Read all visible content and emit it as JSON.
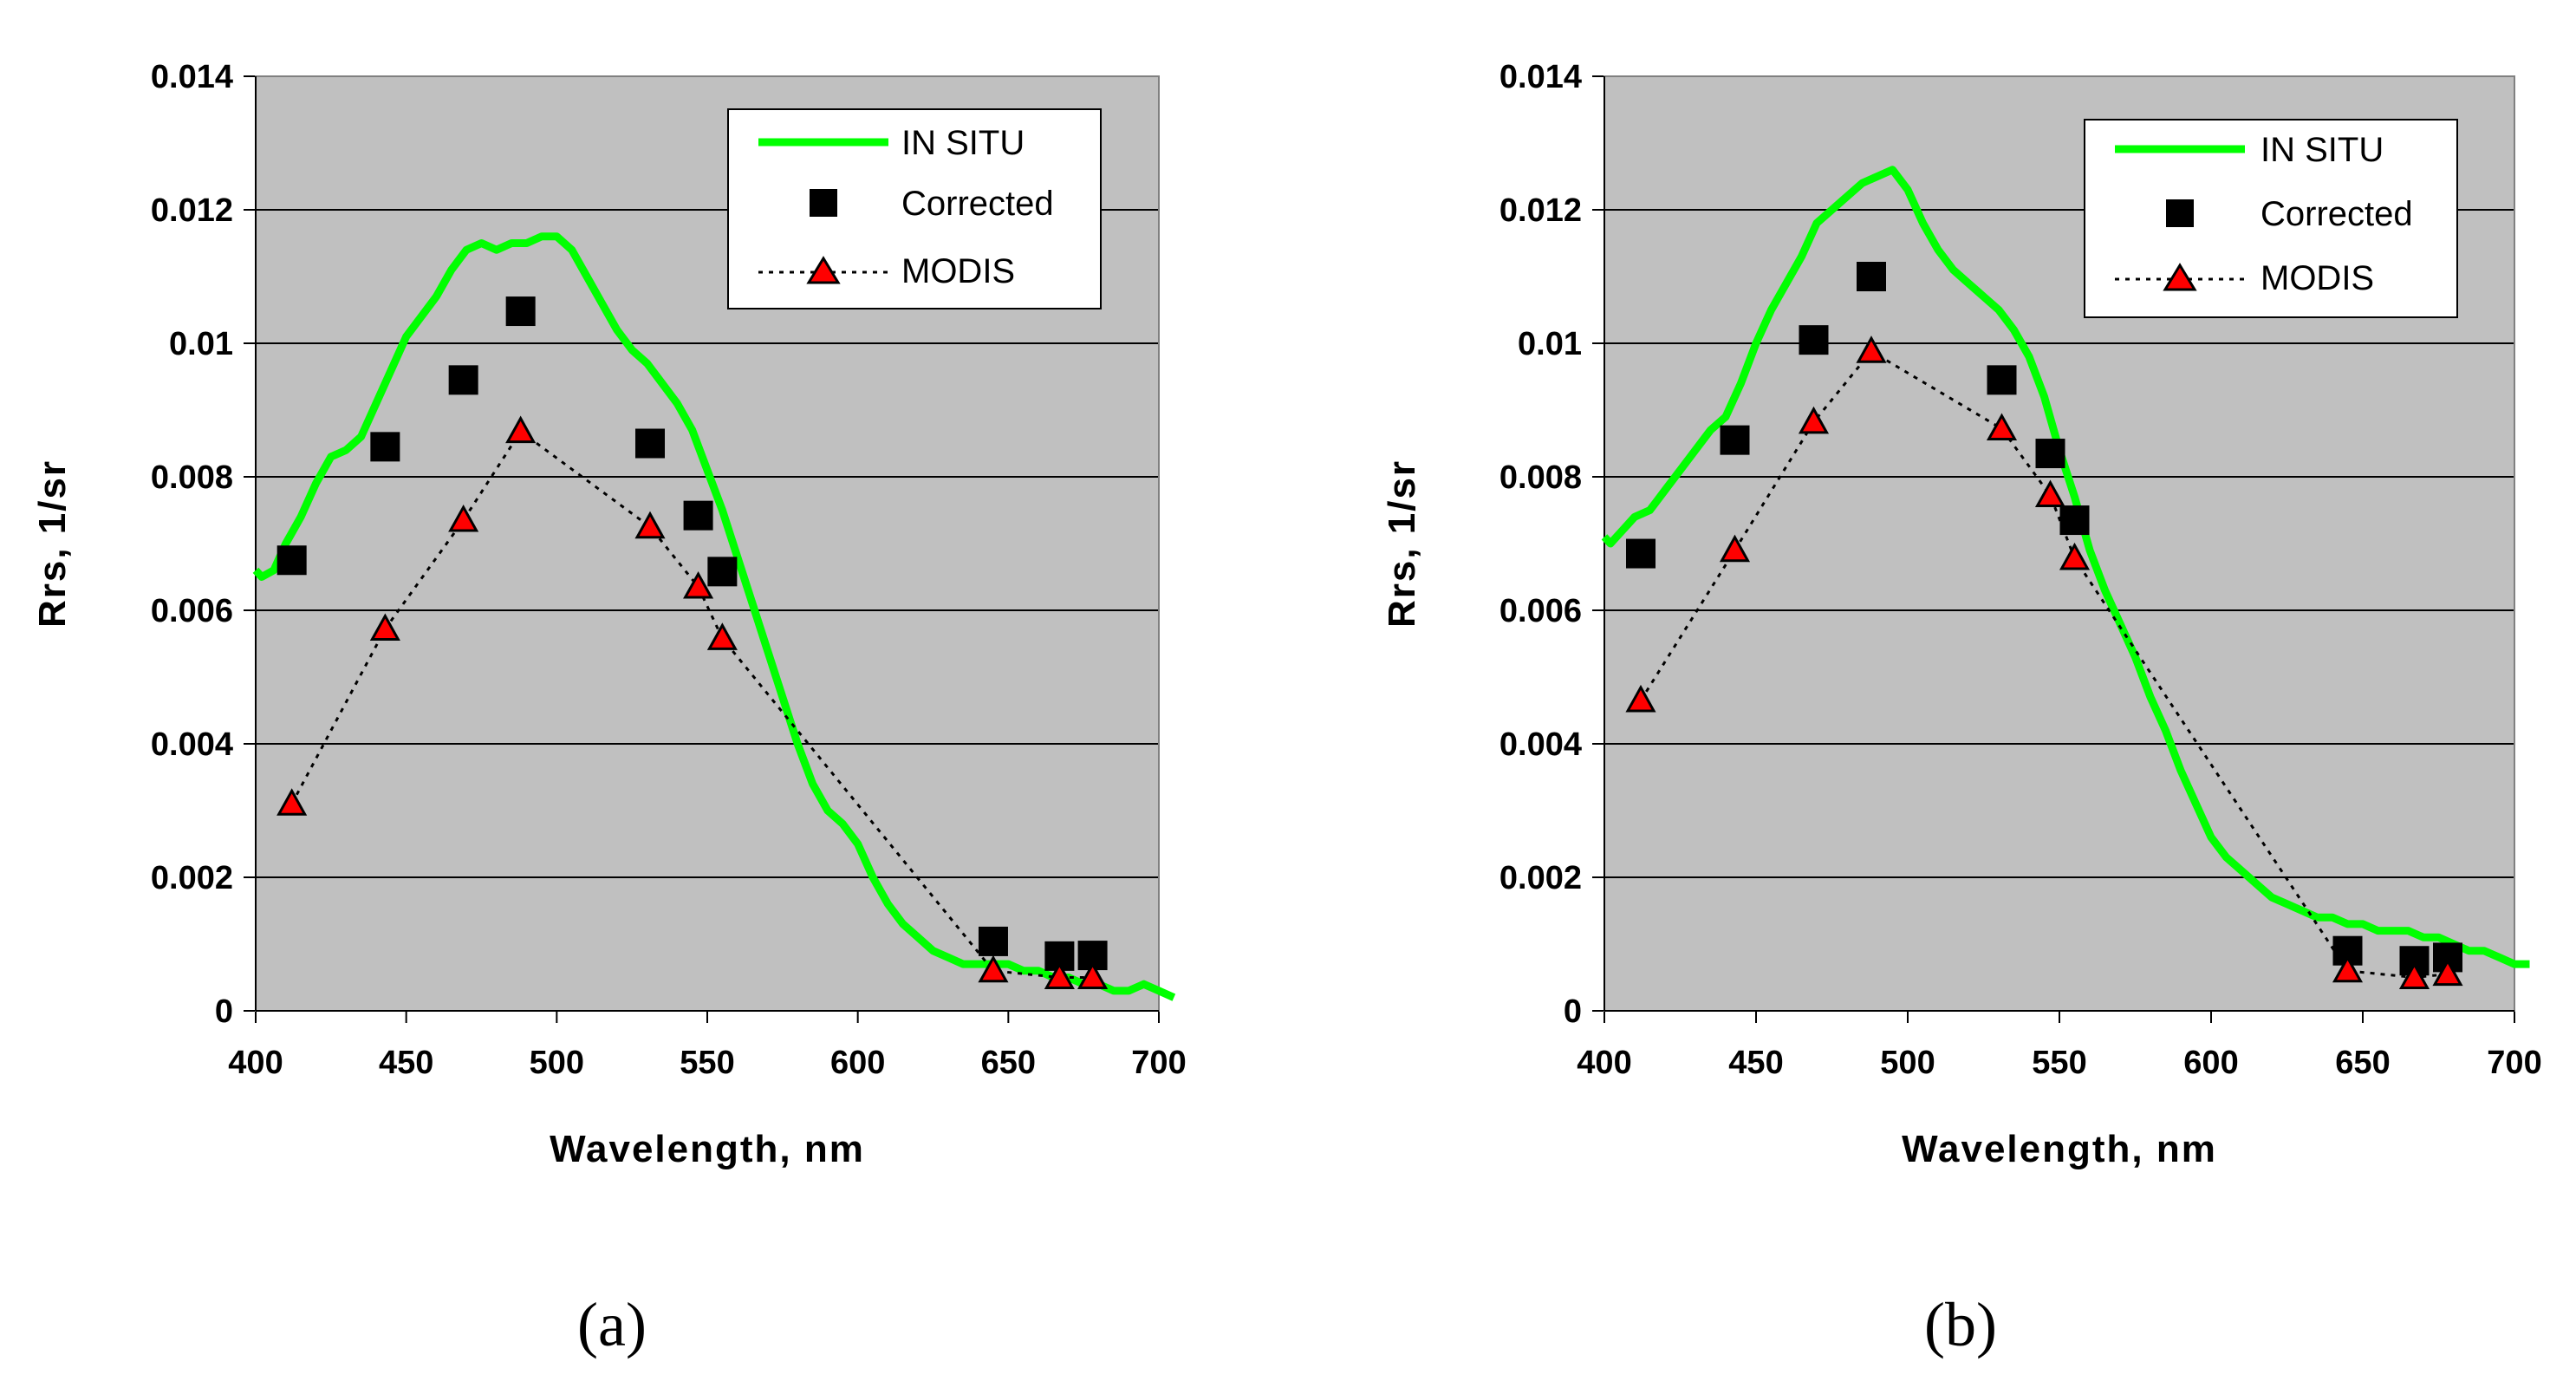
{
  "chart_data": [
    {
      "type": "line",
      "panel_label": "(a)",
      "xlabel": "Wavelength, nm",
      "ylabel": "Rrs, 1/sr",
      "xlim": [
        400,
        700
      ],
      "ylim": [
        0,
        0.014
      ],
      "xticks": [
        "400",
        "450",
        "500",
        "550",
        "600",
        "650",
        "700"
      ],
      "yticks": [
        "0",
        "0.002",
        "0.004",
        "0.006",
        "0.008",
        "0.01",
        "0.012",
        "0.014"
      ],
      "grid": "horizontal",
      "legend_position": "top-right",
      "legend": [
        "IN SITU",
        "Corrected",
        "MODIS"
      ],
      "series": [
        {
          "name": "IN SITU",
          "style": "green-line",
          "x": [
            397,
            402,
            406,
            410,
            415,
            420,
            425,
            430,
            435,
            440,
            445,
            450,
            455,
            460,
            465,
            470,
            475,
            480,
            485,
            490,
            495,
            500,
            505,
            510,
            515,
            520,
            525,
            530,
            535,
            540,
            545,
            550,
            555,
            560,
            565,
            570,
            575,
            580,
            585,
            590,
            595,
            600,
            605,
            610,
            615,
            620,
            625,
            630,
            635,
            640,
            645,
            650,
            655,
            660,
            665,
            670,
            675,
            680,
            685,
            690,
            695,
            700,
            705
          ],
          "values": [
            0.0066,
            0.0065,
            0.0066,
            0.007,
            0.0074,
            0.0079,
            0.0083,
            0.0084,
            0.0086,
            0.0091,
            0.0096,
            0.0101,
            0.0104,
            0.0107,
            0.0111,
            0.0114,
            0.0115,
            0.0114,
            0.0115,
            0.0115,
            0.0116,
            0.0116,
            0.0114,
            0.011,
            0.0106,
            0.0102,
            0.0099,
            0.0097,
            0.0094,
            0.0091,
            0.0087,
            0.0081,
            0.0075,
            0.0068,
            0.0061,
            0.0054,
            0.0047,
            0.004,
            0.0034,
            0.003,
            0.0028,
            0.0025,
            0.002,
            0.0016,
            0.0013,
            0.0011,
            0.0009,
            0.0008,
            0.0007,
            0.0007,
            0.0007,
            0.0007,
            0.0006,
            0.0006,
            0.0005,
            0.0005,
            0.0004,
            0.0004,
            0.0003,
            0.0003,
            0.0004,
            0.0003,
            0.0002
          ]
        },
        {
          "name": "Corrected",
          "style": "black-square",
          "x": [
            412,
            443,
            469,
            488,
            531,
            547,
            555,
            645,
            667,
            678
          ],
          "values": [
            0.00675,
            0.00845,
            0.00945,
            0.01048,
            0.0085,
            0.00742,
            0.00658,
            0.00104,
            0.00082,
            0.00083
          ]
        },
        {
          "name": "MODIS",
          "style": "red-triangle-dotted",
          "x": [
            412,
            443,
            469,
            488,
            531,
            547,
            555,
            645,
            667,
            678
          ],
          "values": [
            0.0031,
            0.00572,
            0.00735,
            0.00868,
            0.00725,
            0.00635,
            0.00558,
            0.0006,
            0.0005,
            0.0005
          ]
        }
      ]
    },
    {
      "type": "line",
      "panel_label": "(b)",
      "xlabel": "Wavelength, nm",
      "ylabel": "Rrs, 1/sr",
      "xlim": [
        400,
        700
      ],
      "ylim": [
        0,
        0.014
      ],
      "xticks": [
        "400",
        "450",
        "500",
        "550",
        "600",
        "650",
        "700"
      ],
      "yticks": [
        "0",
        "0.002",
        "0.004",
        "0.006",
        "0.008",
        "0.01",
        "0.012",
        "0.014"
      ],
      "grid": "horizontal",
      "legend_position": "top-right",
      "legend": [
        "IN SITU",
        "Corrected",
        "MODIS"
      ],
      "series": [
        {
          "name": "IN SITU",
          "style": "green-line",
          "x": [
            397,
            402,
            406,
            410,
            415,
            420,
            425,
            430,
            435,
            440,
            445,
            450,
            455,
            460,
            465,
            470,
            475,
            480,
            485,
            490,
            495,
            500,
            505,
            510,
            515,
            520,
            525,
            530,
            535,
            540,
            545,
            550,
            555,
            560,
            565,
            570,
            575,
            580,
            585,
            590,
            595,
            600,
            605,
            610,
            615,
            620,
            625,
            630,
            635,
            640,
            645,
            650,
            655,
            660,
            665,
            670,
            675,
            680,
            685,
            690,
            695,
            700,
            705
          ],
          "values": [
            0.0071,
            0.007,
            0.0072,
            0.0074,
            0.0075,
            0.0078,
            0.0081,
            0.0084,
            0.0087,
            0.0089,
            0.0094,
            0.01,
            0.0105,
            0.0109,
            0.0113,
            0.0118,
            0.012,
            0.0122,
            0.0124,
            0.0125,
            0.0126,
            0.0123,
            0.0118,
            0.0114,
            0.0111,
            0.0109,
            0.0107,
            0.0105,
            0.0102,
            0.0098,
            0.0092,
            0.0084,
            0.0077,
            0.0069,
            0.0063,
            0.0058,
            0.0053,
            0.0047,
            0.0042,
            0.0036,
            0.0031,
            0.0026,
            0.0023,
            0.0021,
            0.0019,
            0.0017,
            0.0016,
            0.0015,
            0.0014,
            0.0014,
            0.0013,
            0.0013,
            0.0012,
            0.0012,
            0.0012,
            0.0011,
            0.0011,
            0.001,
            0.0009,
            0.0009,
            0.0008,
            0.0007,
            0.0007
          ]
        },
        {
          "name": "Corrected",
          "style": "black-square",
          "x": [
            412,
            443,
            469,
            488,
            531,
            547,
            555,
            645,
            667,
            678
          ],
          "values": [
            0.00685,
            0.00855,
            0.01005,
            0.011,
            0.00945,
            0.00835,
            0.00735,
            0.0009,
            0.00075,
            0.0008
          ]
        },
        {
          "name": "MODIS",
          "style": "red-triangle-dotted",
          "x": [
            412,
            443,
            469,
            488,
            531,
            547,
            555,
            645,
            667,
            678
          ],
          "values": [
            0.00465,
            0.0069,
            0.00882,
            0.00988,
            0.00872,
            0.00772,
            0.00678,
            0.0006,
            0.0005,
            0.00055
          ]
        }
      ]
    }
  ]
}
